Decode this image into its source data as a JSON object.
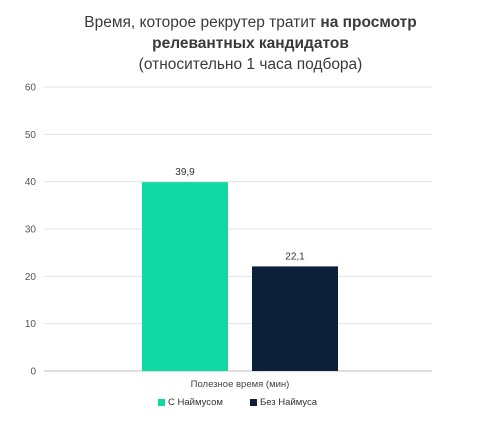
{
  "chart_data": {
    "type": "bar",
    "title_part1": "Время, которое рекрутер тратит",
    "title_part2": "на просмотр",
    "title_line2": "релевантных кандидатов",
    "title_line3": "(относительно 1 часа подбора)",
    "categories": [
      "Полезное время (мин)"
    ],
    "series": [
      {
        "name": "С Наймусом",
        "values": [
          39.9
        ],
        "label": "39,9",
        "color": "#10d9a6"
      },
      {
        "name": "Без Наймуса",
        "values": [
          22.1
        ],
        "label": "22,1",
        "color": "#0c2039"
      }
    ],
    "ylim": [
      0,
      60
    ],
    "yticks": [
      "0",
      "10",
      "20",
      "30",
      "40",
      "50",
      "60"
    ],
    "grid": true,
    "legend_position": "bottom"
  }
}
